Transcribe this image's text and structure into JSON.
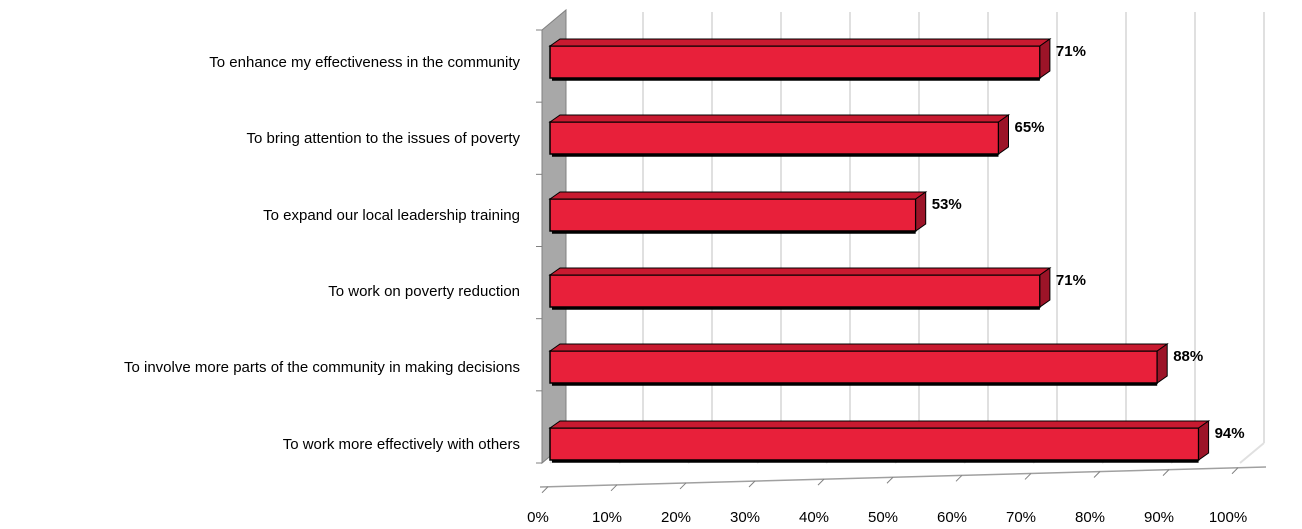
{
  "chart_data": {
    "type": "bar",
    "orientation": "horizontal",
    "style": "3d",
    "categories": [
      "To enhance my effectiveness in the community",
      "To bring attention to the issues of poverty",
      "To expand our local leadership training",
      "To work on poverty reduction",
      "To involve more parts of the community  in making decisions",
      "To work more effectively with others"
    ],
    "values": [
      71,
      65,
      53,
      71,
      88,
      94
    ],
    "data_labels": [
      "71%",
      "65%",
      "53%",
      "71%",
      "88%",
      "94%"
    ],
    "xlim": [
      0,
      100
    ],
    "x_ticks": [
      0,
      10,
      20,
      30,
      40,
      50,
      60,
      70,
      80,
      90,
      100
    ],
    "x_tick_labels": [
      "0%",
      "10%",
      "20%",
      "30%",
      "40%",
      "50%",
      "60%",
      "70%",
      "80%",
      "90%",
      "100%"
    ],
    "title": "",
    "xlabel": "",
    "ylabel": "",
    "grid": true,
    "legend": "none",
    "colors": {
      "bar_front": "#e8203a",
      "bar_side": "#9c1428",
      "bar_top": "#c81a30",
      "bar_edge": "#000000",
      "wall": "#a8a8a8",
      "wall_edge": "#808080",
      "grid": "#e0e0e0"
    }
  }
}
